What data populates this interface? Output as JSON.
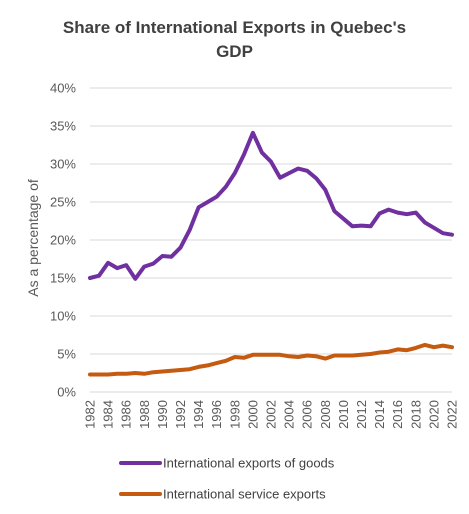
{
  "chart_data": {
    "type": "line",
    "title_line1": "Share of International Exports in Quebec's",
    "title_line2": "GDP",
    "ylabel": "As a percentage of",
    "xlabel": "",
    "ylim": [
      0,
      40
    ],
    "y_ticks": [
      "0%",
      "5%",
      "10%",
      "15%",
      "20%",
      "25%",
      "30%",
      "35%",
      "40%"
    ],
    "x": [
      1982,
      1983,
      1984,
      1985,
      1986,
      1987,
      1988,
      1989,
      1990,
      1991,
      1992,
      1993,
      1994,
      1995,
      1996,
      1997,
      1998,
      1999,
      2000,
      2001,
      2002,
      2003,
      2004,
      2005,
      2006,
      2007,
      2008,
      2009,
      2010,
      2011,
      2012,
      2013,
      2014,
      2015,
      2016,
      2017,
      2018,
      2019,
      2020,
      2021,
      2022
    ],
    "x_tick_labels": [
      "1982",
      "1984",
      "1986",
      "1988",
      "1990",
      "1992",
      "1994",
      "1996",
      "1998",
      "2000",
      "2002",
      "2004",
      "2006",
      "2008",
      "2010",
      "2012",
      "2014",
      "2016",
      "2018",
      "2020",
      "2022"
    ],
    "grid": true,
    "legend_position": "bottom",
    "series": [
      {
        "name": "International exports of goods",
        "color": "#7030a0",
        "values": [
          15.0,
          15.3,
          17.0,
          16.3,
          16.7,
          14.9,
          16.5,
          16.9,
          17.9,
          17.8,
          19.0,
          21.3,
          24.3,
          25.0,
          25.7,
          27.0,
          28.8,
          31.2,
          34.1,
          31.5,
          30.3,
          28.2,
          28.8,
          29.4,
          29.1,
          28.1,
          26.6,
          23.8,
          22.8,
          21.8,
          21.9,
          21.8,
          23.5,
          24.0,
          23.6,
          23.4,
          23.6,
          22.3,
          21.6,
          20.9,
          20.7
        ]
      },
      {
        "name": "International service exports",
        "color": "#c55a11",
        "values": [
          2.3,
          2.3,
          2.3,
          2.4,
          2.4,
          2.5,
          2.4,
          2.6,
          2.7,
          2.8,
          2.9,
          3.0,
          3.3,
          3.5,
          3.8,
          4.1,
          4.6,
          4.5,
          4.9,
          4.9,
          4.9,
          4.9,
          4.7,
          4.6,
          4.8,
          4.7,
          4.4,
          4.8,
          4.8,
          4.8,
          4.9,
          5.0,
          5.2,
          5.3,
          5.6,
          5.5,
          5.8,
          6.2,
          5.9,
          6.1,
          5.9
        ]
      }
    ]
  }
}
